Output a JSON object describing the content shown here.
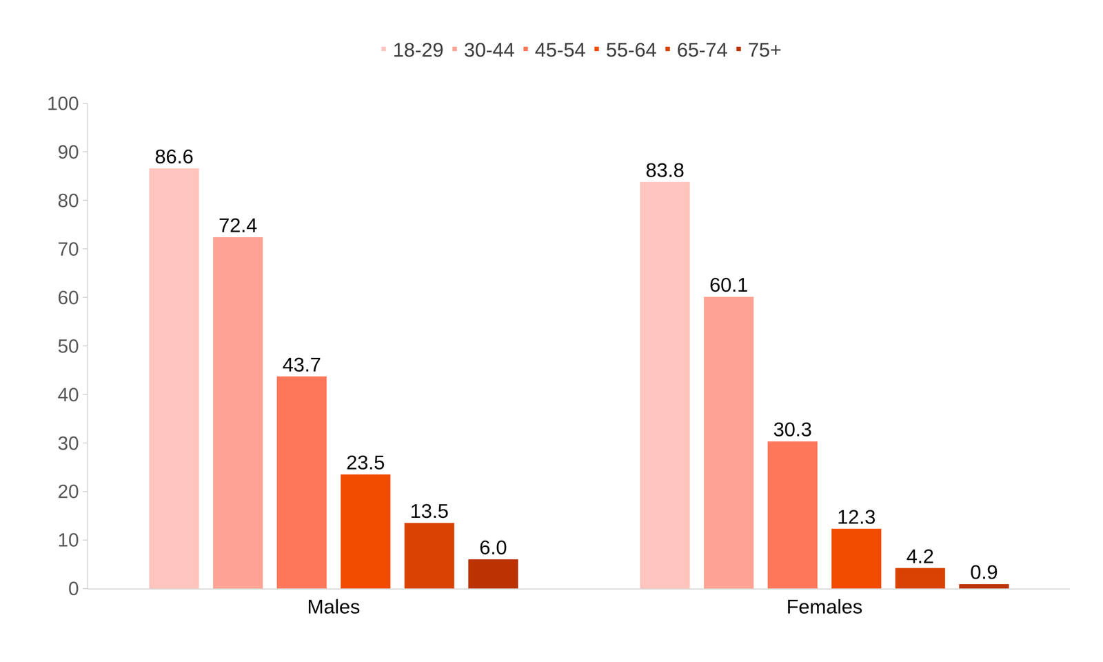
{
  "chart_data": {
    "type": "bar",
    "categories": [
      "Males",
      "Females"
    ],
    "series": [
      {
        "name": "18-29",
        "color": "#FFC4BE",
        "values": [
          86.6,
          83.8
        ],
        "value_labels": [
          "86.6",
          "83.8"
        ]
      },
      {
        "name": "30-44",
        "color": "#FFA394",
        "values": [
          72.4,
          60.1
        ],
        "value_labels": [
          "72.4",
          "60.1"
        ]
      },
      {
        "name": "45-54",
        "color": "#FF775B",
        "values": [
          43.7,
          30.3
        ],
        "value_labels": [
          "43.7",
          "30.3"
        ]
      },
      {
        "name": "55-64",
        "color": "#F24C00",
        "values": [
          23.5,
          12.3
        ],
        "value_labels": [
          "23.5",
          "12.3"
        ]
      },
      {
        "name": "65-74",
        "color": "#D94200",
        "values": [
          13.5,
          4.2
        ],
        "value_labels": [
          "13.5",
          "4.2"
        ]
      },
      {
        "name": "75+",
        "color": "#BB3300",
        "values": [
          6.0,
          0.9
        ],
        "value_labels": [
          "6.0",
          "0.9"
        ]
      }
    ],
    "ylim": [
      0,
      100
    ],
    "yticks": [
      0,
      10,
      20,
      30,
      40,
      50,
      60,
      70,
      80,
      90,
      100
    ],
    "grid": false,
    "legend": "top",
    "data_labels": true
  }
}
